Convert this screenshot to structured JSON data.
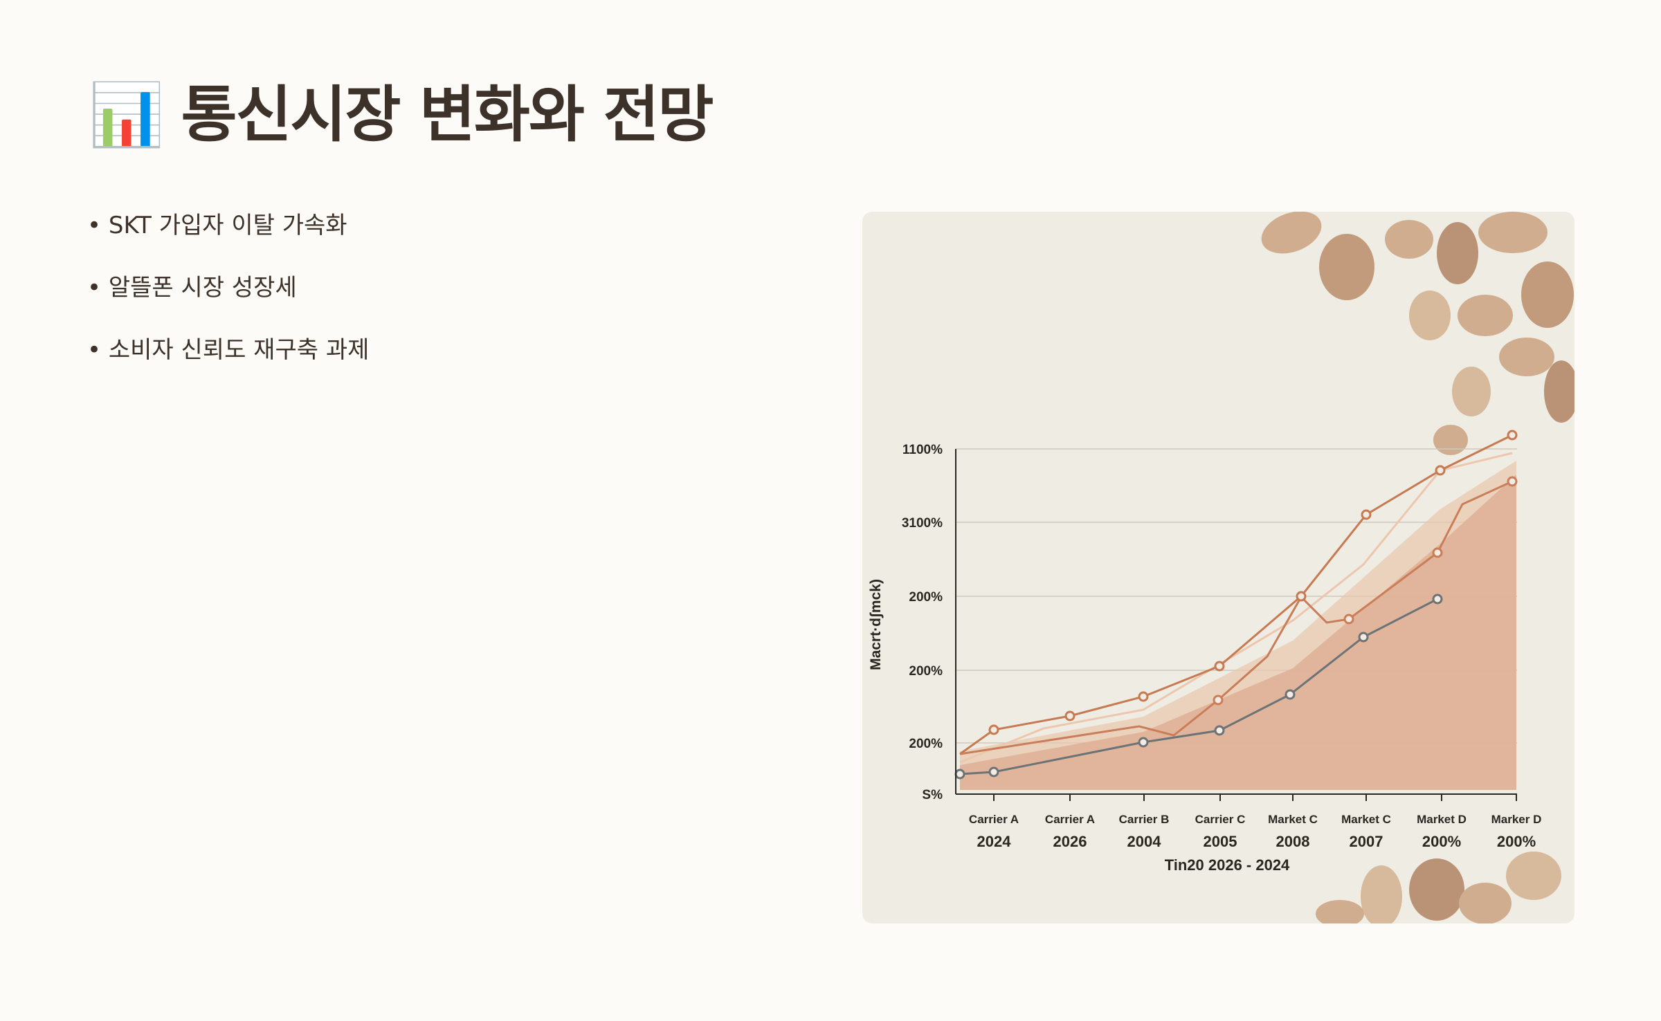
{
  "header": {
    "icon": "📊",
    "title": "통신시장 변화와 전망"
  },
  "bullets": [
    "SKT 가입자 이탈 가속화",
    "알뜰폰 시장 성장세",
    "소비자 신뢰도 재구축 과제"
  ],
  "image": {
    "y_axis_label": "Macrt·dʃmck)",
    "y_tick_labels": [
      "1100%",
      "3100%",
      "200%",
      "200%",
      "200%",
      "S%"
    ],
    "x_categories": [
      "Carrier A",
      "Carrier A",
      "Carrier B",
      "Carrier C",
      "Market C",
      "Market C",
      "Market D",
      "Marker D"
    ],
    "x_sublabels": [
      "2024",
      "2026",
      "2004",
      "2005",
      "2008",
      "2007",
      "200%",
      "200%"
    ],
    "x_axis_label": "Tin20 2026 - 2024"
  }
}
